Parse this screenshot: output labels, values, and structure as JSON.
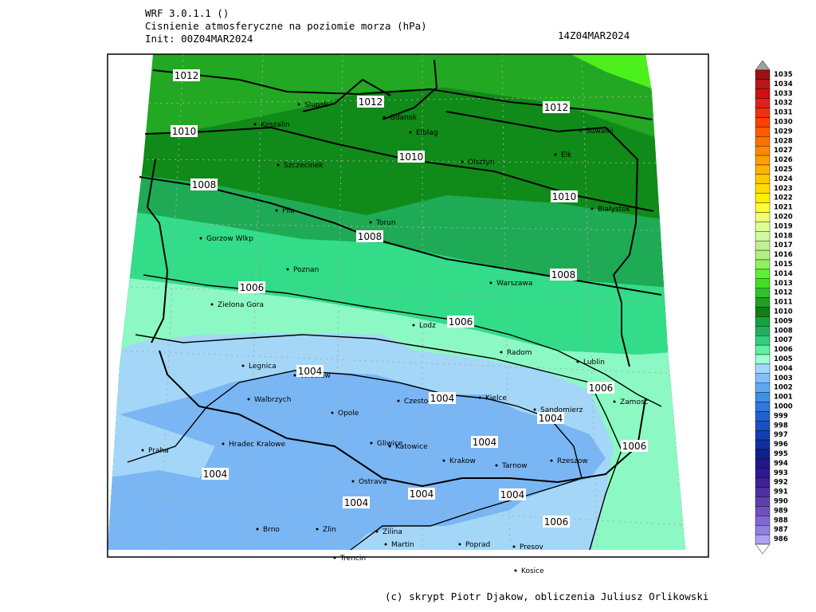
{
  "header": {
    "model": "WRF 3.0.1.1 ()",
    "field": "Cisnienie atmosferyczne na poziomie morza (hPa)",
    "init": "Init: 00Z04MAR2024",
    "valid": "14Z04MAR2024"
  },
  "cities": [
    "Slupsk",
    "Gdansk",
    "Koszalin",
    "Elblag",
    "Suwalki",
    "Elk",
    "Szczecinek",
    "Olsztyn",
    "Bialystok",
    "Pila",
    "Torun",
    "Gorzow Wlkp",
    "Poznan",
    "Warszawa",
    "Zielona Gora",
    "Lodz",
    "Radom",
    "Lublin",
    "Legnica",
    "Wroclaw",
    "Walbrzych",
    "Czestochowa",
    "Kielce",
    "Zamosc",
    "Opole",
    "Sandomierz",
    "Hradec Kralowe",
    "Gliwice",
    "Katowice",
    "Praha",
    "Krakow",
    "Tarnow",
    "Rzeszow",
    "Ostrava",
    "Brno",
    "Zlin",
    "Zilina",
    "Martin",
    "Poprad",
    "Presov",
    "Trencin",
    "Kosice"
  ],
  "contour_labels": [
    "1012",
    "1012",
    "1012",
    "1010",
    "1010",
    "1010",
    "1008",
    "1008",
    "1008",
    "1006",
    "1006",
    "1006",
    "1006",
    "1006",
    "1004",
    "1004",
    "1004",
    "1004",
    "1004",
    "1004",
    "1004",
    "1004"
  ],
  "colorbar": {
    "levels": [
      {
        "value": 1035,
        "color": "#a01010"
      },
      {
        "value": 1034,
        "color": "#b81818"
      },
      {
        "value": 1033,
        "color": "#d01010"
      },
      {
        "value": 1032,
        "color": "#e02020"
      },
      {
        "value": 1031,
        "color": "#f03010"
      },
      {
        "value": 1030,
        "color": "#ff4000"
      },
      {
        "value": 1029,
        "color": "#ff5a00"
      },
      {
        "value": 1028,
        "color": "#ff7000"
      },
      {
        "value": 1027,
        "color": "#ff8800"
      },
      {
        "value": 1026,
        "color": "#ffa000"
      },
      {
        "value": 1025,
        "color": "#ffb400"
      },
      {
        "value": 1024,
        "color": "#ffc800"
      },
      {
        "value": 1023,
        "color": "#ffdc00"
      },
      {
        "value": 1022,
        "color": "#fff000"
      },
      {
        "value": 1021,
        "color": "#ffff30"
      },
      {
        "value": 1020,
        "color": "#f0ff70"
      },
      {
        "value": 1019,
        "color": "#e0ff90"
      },
      {
        "value": 1018,
        "color": "#d0f8a0"
      },
      {
        "value": 1017,
        "color": "#c0f090"
      },
      {
        "value": 1016,
        "color": "#b0f080"
      },
      {
        "value": 1015,
        "color": "#90f060"
      },
      {
        "value": 1014,
        "color": "#60f030"
      },
      {
        "value": 1013,
        "color": "#40e020"
      },
      {
        "value": 1012,
        "color": "#30c030"
      },
      {
        "value": 1011,
        "color": "#20a020"
      },
      {
        "value": 1010,
        "color": "#108010"
      },
      {
        "value": 1009,
        "color": "#18a040"
      },
      {
        "value": 1008,
        "color": "#20b060"
      },
      {
        "value": 1007,
        "color": "#30d080"
      },
      {
        "value": 1006,
        "color": "#60f0a0"
      },
      {
        "value": 1005,
        "color": "#a0ffd0"
      },
      {
        "value": 1004,
        "color": "#a0d8ff"
      },
      {
        "value": 1003,
        "color": "#80c0f8"
      },
      {
        "value": 1002,
        "color": "#60a8f0"
      },
      {
        "value": 1001,
        "color": "#4090e8"
      },
      {
        "value": 1000,
        "color": "#3078e0"
      },
      {
        "value": 999,
        "color": "#2060d0"
      },
      {
        "value": 998,
        "color": "#1850c0"
      },
      {
        "value": 997,
        "color": "#1040b0"
      },
      {
        "value": 996,
        "color": "#1030a0"
      },
      {
        "value": 995,
        "color": "#102090"
      },
      {
        "value": 994,
        "color": "#201888"
      },
      {
        "value": 993,
        "color": "#301890"
      },
      {
        "value": 992,
        "color": "#402098"
      },
      {
        "value": 991,
        "color": "#5030a0"
      },
      {
        "value": 990,
        "color": "#6040b0"
      },
      {
        "value": 989,
        "color": "#7050c0"
      },
      {
        "value": 988,
        "color": "#8068d0"
      },
      {
        "value": 987,
        "color": "#9080e0"
      },
      {
        "value": 986,
        "color": "#b0a0f0"
      }
    ]
  },
  "footer": "(c) skrypt Piotr Djakow, obliczenia Juliusz Orlikowski"
}
